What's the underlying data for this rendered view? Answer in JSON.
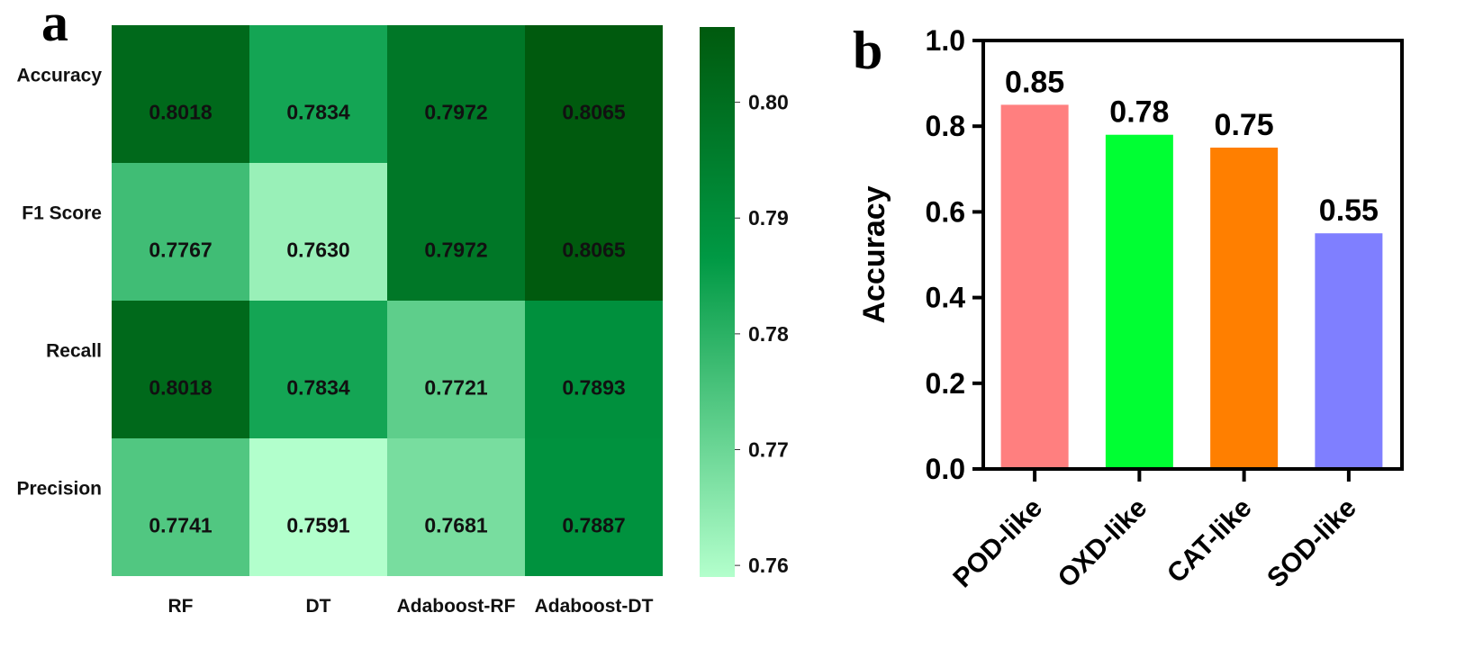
{
  "panels": {
    "a": "a",
    "b": "b"
  },
  "chart_data": [
    {
      "type": "heatmap",
      "panel": "a",
      "rows": [
        "Accuracy",
        "F1 Score",
        "Recall",
        "Precision"
      ],
      "columns": [
        "RF",
        "DT",
        "Adaboost-RF",
        "Adaboost-DT"
      ],
      "values": [
        [
          0.8018,
          0.7834,
          0.7972,
          0.8065
        ],
        [
          0.7767,
          0.763,
          0.7972,
          0.8065
        ],
        [
          0.8018,
          0.7834,
          0.7721,
          0.7893
        ],
        [
          0.7741,
          0.7591,
          0.7681,
          0.7887
        ]
      ],
      "cell_labels": [
        [
          "0.8018",
          "0.7834",
          "0.7972",
          "0.8065"
        ],
        [
          "0.7767",
          "0.7630",
          "0.7972",
          "0.8065"
        ],
        [
          "0.8018",
          "0.7834",
          "0.7721",
          "0.7893"
        ],
        [
          "0.7741",
          "0.7591",
          "0.7681",
          "0.7887"
        ]
      ],
      "colorbar": {
        "range": [
          0.759,
          0.8065
        ],
        "ticks": [
          "0.76",
          "0.77",
          "0.78",
          "0.79",
          "0.80"
        ],
        "tick_values": [
          0.76,
          0.77,
          0.78,
          0.79,
          0.8
        ],
        "color_low": "#b3ffcc",
        "color_mid": "#009944",
        "color_high": "#005a0e"
      }
    },
    {
      "type": "bar",
      "panel": "b",
      "categories": [
        "POD-like",
        "OXD-like",
        "CAT-like",
        "SOD-like"
      ],
      "values": [
        0.85,
        0.78,
        0.75,
        0.55
      ],
      "value_labels": [
        "0.85",
        "0.78",
        "0.75",
        "0.55"
      ],
      "colors": [
        "#ff7f7f",
        "#00ff33",
        "#ff7f00",
        "#7f7fff"
      ],
      "ylabel": "Accuracy",
      "xlabel": "",
      "ylim": [
        0,
        1.0
      ],
      "yticks": [
        "0.0",
        "0.2",
        "0.4",
        "0.6",
        "0.8",
        "1.0"
      ],
      "ytick_values": [
        0,
        0.2,
        0.4,
        0.6,
        0.8,
        1.0
      ]
    }
  ]
}
